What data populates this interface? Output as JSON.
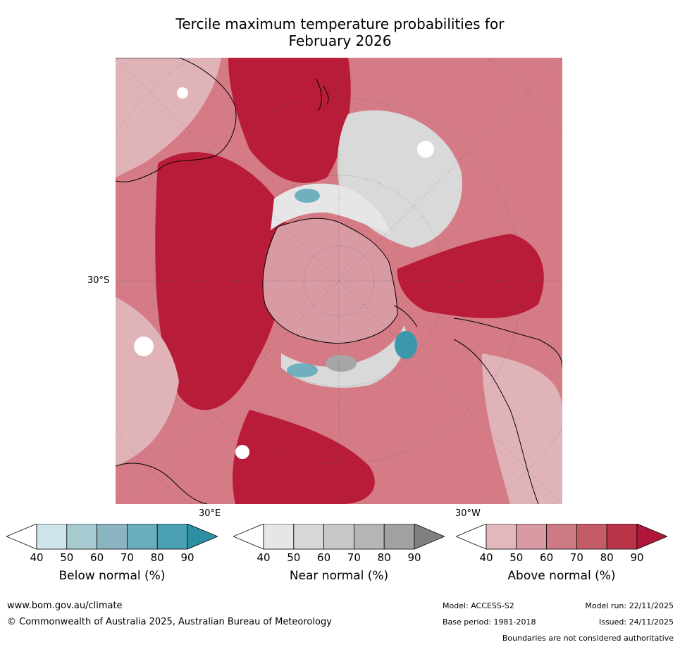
{
  "title": {
    "line1": "Tercile maximum temperature probabilities for",
    "line2": "February 2026"
  },
  "map": {
    "projection": "south-polar-stereographic",
    "graticule_labels": {
      "left": "30°S",
      "bottom_left": "30°E",
      "bottom_right": "30°W"
    },
    "colors": {
      "ocean_high_above": "#b91c38",
      "above_60": "#d47b86",
      "above_50": "#e0b3b9",
      "near": "#d9d9d9",
      "near_high": "#a6a6a6",
      "below": "#6fb0bf",
      "below_high": "#3a97ac",
      "coast": "#000000"
    }
  },
  "colorbars": [
    {
      "label": "Below normal (%)",
      "ticks": [
        "40",
        "50",
        "60",
        "70",
        "80",
        "90"
      ],
      "colors": [
        "#ffffff",
        "#cde4ea",
        "#a7c9d0",
        "#8ab4c1",
        "#6aaebb",
        "#48a0b0",
        "#2c8fa3"
      ]
    },
    {
      "label": "Near normal (%)",
      "ticks": [
        "40",
        "50",
        "60",
        "70",
        "80",
        "90"
      ],
      "colors": [
        "#ffffff",
        "#e6e6e6",
        "#d7d7d7",
        "#c7c7c7",
        "#b5b5b5",
        "#a1a1a1",
        "#808080"
      ]
    },
    {
      "label": "Above normal (%)",
      "ticks": [
        "40",
        "50",
        "60",
        "70",
        "80",
        "90"
      ],
      "colors": [
        "#ffffff",
        "#e2b8bd",
        "#d89aa3",
        "#cd7a84",
        "#c45c68",
        "#b93449",
        "#b0163a"
      ]
    }
  ],
  "footer": {
    "url": "www.bom.gov.au/climate",
    "copyright": "© Commonwealth of Australia 2025, Australian Bureau of Meteorology",
    "model": "Model: ACCESS-S2",
    "model_run": "Model run: 22/11/2025",
    "base_period": "Base period: 1981-2018",
    "issued": "Issued: 24/11/2025",
    "disclaimer": "Boundaries are not considered authoritative"
  }
}
